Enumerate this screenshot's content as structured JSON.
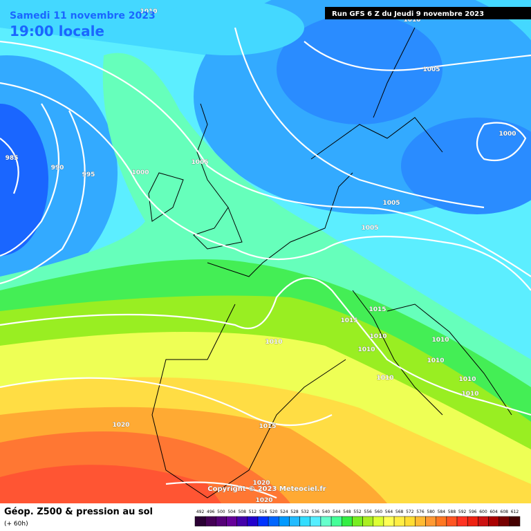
{
  "header": {
    "date": "Samedi 11 novembre 2023",
    "time": "19:00 locale",
    "run": "Run GFS 6 Z du Jeudi 9 novembre 2023"
  },
  "isobar_labels": [
    1010,
    985,
    990,
    995,
    1000,
    1005,
    1005,
    1000,
    1005,
    1005,
    1015,
    1015,
    1010,
    1010,
    1010,
    1010,
    1010,
    1010,
    1010,
    1010,
    1015,
    1020,
    1020,
    1020,
    1010
  ],
  "copyright": "Copyright © 2023 Meteociel.fr",
  "legend": {
    "title": "Géop. Z500 & pression au sol",
    "lead": "(+ 60h)",
    "scale": [
      492,
      496,
      500,
      504,
      508,
      512,
      516,
      520,
      524,
      528,
      532,
      536,
      540,
      544,
      548,
      552,
      556,
      560,
      564,
      568,
      572,
      576,
      580,
      584,
      588,
      592,
      596,
      600,
      604,
      608,
      612
    ]
  }
}
